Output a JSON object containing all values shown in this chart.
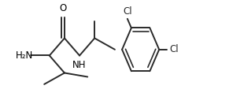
{
  "bg_color": "#ffffff",
  "line_color": "#2a2a2a",
  "lw": 1.4,
  "lw_inner": 1.2,
  "h2n_label": "H₂N",
  "o_label": "O",
  "nh_label": "NH",
  "cl_label": "Cl",
  "cl_color": "#2a2a2a",
  "atom_color": "#000000",
  "font_size": 8.5
}
